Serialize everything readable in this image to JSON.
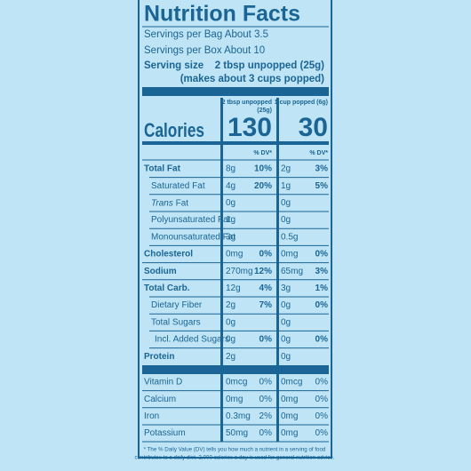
{
  "title": "Nutrition Facts",
  "servings": [
    "Servings per Bag About 3.5",
    "Servings per Box About 10"
  ],
  "serving_size": {
    "label": "Serving size",
    "value": "2 tbsp unpopped (25g)",
    "note": "(makes about 3 cups popped)"
  },
  "columns": [
    [
      "2 tbsp unpopped",
      "(25g)"
    ],
    [
      "1 cup popped (6g)"
    ]
  ],
  "calories": {
    "label": "Calories",
    "values": [
      "130",
      "30"
    ]
  },
  "dv_headers": [
    "% DV*",
    "% DV*"
  ],
  "rows": [
    {
      "name": "Total Fat",
      "bold": true,
      "cells": [
        {
          "amount": "8g",
          "dv": "10%"
        },
        {
          "amount": "2g",
          "dv": "3%"
        }
      ]
    },
    {
      "name": "Saturated Fat",
      "indent": true,
      "cells": [
        {
          "amount": "4g",
          "dv": "20%"
        },
        {
          "amount": "1g",
          "dv": "5%"
        }
      ]
    },
    {
      "prefix": "Trans",
      "name": "Fat",
      "indent": true,
      "cells": [
        {
          "amount": "0g"
        },
        {
          "amount": "0g"
        }
      ]
    },
    {
      "name": "Polyunsaturated Fat",
      "indent": true,
      "cells": [
        {
          "amount": "1g"
        },
        {
          "amount": "0g"
        }
      ]
    },
    {
      "name": "Monounsaturated Fat",
      "indent": true,
      "cells": [
        {
          "amount": "3g"
        },
        {
          "amount": "0.5g"
        }
      ]
    },
    {
      "name": "Cholesterol",
      "bold": true,
      "cells": [
        {
          "amount": "0mg",
          "dv": "0%"
        },
        {
          "amount": "0mg",
          "dv": "0%"
        }
      ]
    },
    {
      "name": "Sodium",
      "bold": true,
      "cells": [
        {
          "amount": "270mg",
          "dv": "12%"
        },
        {
          "amount": "65mg",
          "dv": "3%"
        }
      ]
    },
    {
      "name": "Total Carb.",
      "bold": true,
      "cells": [
        {
          "amount": "12g",
          "dv": "4%"
        },
        {
          "amount": "3g",
          "dv": "1%"
        }
      ]
    },
    {
      "name": "Dietary Fiber",
      "indent": true,
      "cells": [
        {
          "amount": "2g",
          "dv": "7%"
        },
        {
          "amount": "0g",
          "dv": "0%"
        }
      ]
    },
    {
      "name": "Total Sugars",
      "indent": true,
      "cells": [
        {
          "amount": "0g"
        },
        {
          "amount": "0g"
        }
      ]
    },
    {
      "name": "Incl. Added Sugars",
      "indent": true,
      "deep": true,
      "cells": [
        {
          "amount": "0g",
          "dv": "0%"
        },
        {
          "amount": "0g",
          "dv": "0%"
        }
      ]
    },
    {
      "name": "Protein",
      "bold": true,
      "cells": [
        {
          "amount": "2g"
        },
        {
          "amount": "0g"
        }
      ]
    }
  ],
  "vitamins": [
    {
      "name": "Vitamin D",
      "cells": [
        {
          "amount": "0mcg",
          "dv": "0%"
        },
        {
          "amount": "0mcg",
          "dv": "0%"
        }
      ]
    },
    {
      "name": "Calcium",
      "cells": [
        {
          "amount": "0mg",
          "dv": "0%"
        },
        {
          "amount": "0mg",
          "dv": "0%"
        }
      ]
    },
    {
      "name": "Iron",
      "cells": [
        {
          "amount": "0.3mg",
          "dv": "2%"
        },
        {
          "amount": "0mg",
          "dv": "0%"
        }
      ]
    },
    {
      "name": "Potassium",
      "cells": [
        {
          "amount": "50mg",
          "dv": "0%"
        },
        {
          "amount": "0mg",
          "dv": "0%"
        }
      ]
    }
  ],
  "footnote": [
    "* The % Daily Value (DV) tells you how much a nutrient in a serving of food",
    "contributes to a daily diet. 2,000 calories a day is used for general nutrition advice."
  ]
}
